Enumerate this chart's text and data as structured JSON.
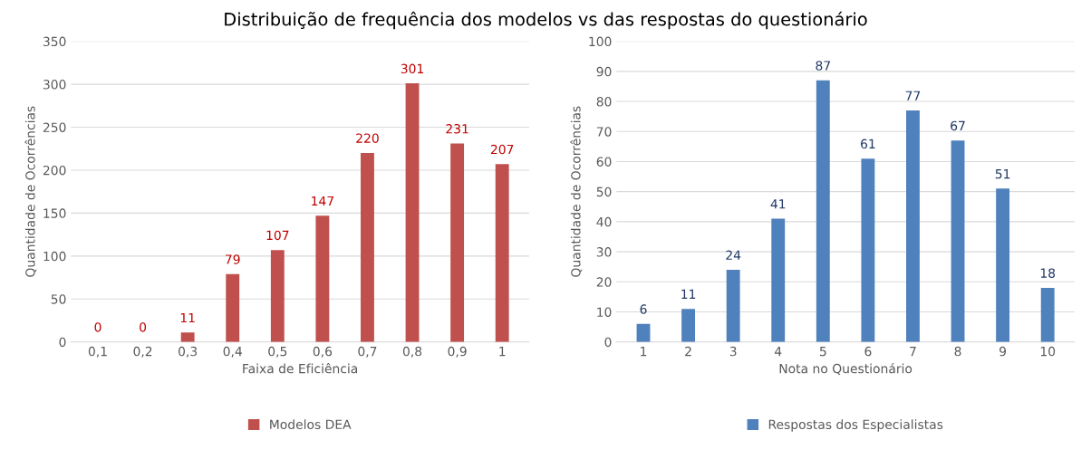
{
  "chart_data": [
    {
      "type": "bar",
      "title": "Distribuição de frequência dos modelos vs das respostas do questionário",
      "xlabel": "Faixa de Eficiência",
      "ylabel": "Quantidade de Ocorrências",
      "categories": [
        "0,1",
        "0,2",
        "0,3",
        "0,4",
        "0,5",
        "0,6",
        "0,7",
        "0,8",
        "0,9",
        "1"
      ],
      "series": [
        {
          "name": "Modelos DEA",
          "color": "#c0504d",
          "values": [
            0,
            0,
            11,
            79,
            107,
            147,
            220,
            301,
            231,
            207
          ]
        }
      ],
      "ylim": [
        0,
        350
      ],
      "yticks": [
        0,
        50,
        100,
        150,
        200,
        250,
        300,
        350
      ],
      "grid": "y",
      "legend": "bottom",
      "data_labels": true
    },
    {
      "type": "bar",
      "xlabel": "Nota no Questionário",
      "ylabel": "Quantidade de Ocorrências",
      "categories": [
        "1",
        "2",
        "3",
        "4",
        "5",
        "6",
        "7",
        "8",
        "9",
        "10"
      ],
      "series": [
        {
          "name": "Respostas dos Especialistas",
          "color": "#4f81bd",
          "values": [
            6,
            11,
            24,
            41,
            87,
            61,
            77,
            67,
            51,
            18
          ]
        }
      ],
      "ylim": [
        0,
        100
      ],
      "yticks": [
        0,
        10,
        20,
        30,
        40,
        50,
        60,
        70,
        80,
        90,
        100
      ],
      "grid": "y",
      "legend": "bottom",
      "data_labels": true
    }
  ]
}
